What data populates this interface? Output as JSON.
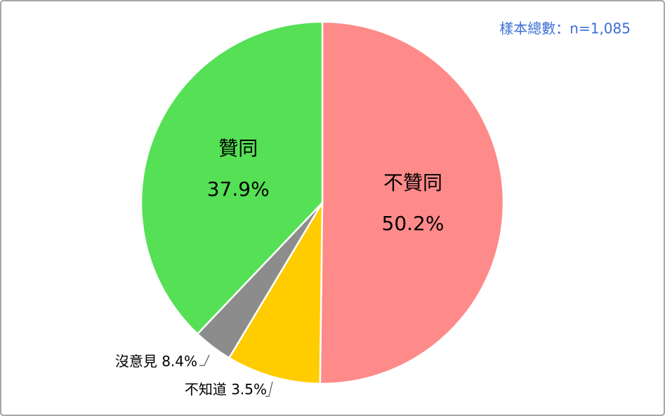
{
  "chart_data": {
    "type": "pie",
    "annotation": "樣本總數：n=1,085",
    "categories": [
      "不贊同",
      "沒意見",
      "不知道",
      "贊同"
    ],
    "values": [
      50.2,
      8.4,
      3.5,
      37.9
    ],
    "value_labels": [
      "50.2%",
      "8.4%",
      "3.5%",
      "37.9%"
    ],
    "colors": [
      "#ff8a8a",
      "#ffcc00",
      "#8c8c8c",
      "#55e055"
    ]
  }
}
